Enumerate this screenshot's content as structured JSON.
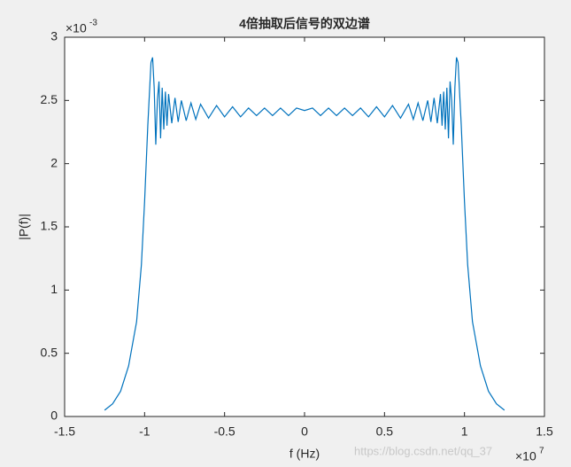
{
  "chart_data": {
    "type": "line",
    "title": "4倍抽取后信号的双边谱",
    "x_label": "f (Hz)",
    "y_label": "|P(f)|",
    "x_multiplier": {
      "base": "×10",
      "exponent": "7"
    },
    "y_multiplier": {
      "base": "×10",
      "exponent": "-3"
    },
    "watermark": "https://blog.csdn.net/qq_37",
    "xlim": [
      -1.5,
      1.5
    ],
    "ylim": [
      0,
      3
    ],
    "xticks": [
      -1.5,
      -1,
      -0.5,
      0,
      0.5,
      1,
      1.5
    ],
    "yticks": [
      0,
      0.5,
      1,
      1.5,
      2,
      2.5,
      3
    ],
    "grid": false,
    "x": [
      -1.25,
      -1.2,
      -1.15,
      -1.1,
      -1.05,
      -1.02,
      -1,
      -0.98,
      -0.96,
      -0.95,
      -0.94,
      -0.93,
      -0.92,
      -0.91,
      -0.9,
      -0.89,
      -0.88,
      -0.87,
      -0.86,
      -0.85,
      -0.83,
      -0.81,
      -0.79,
      -0.77,
      -0.74,
      -0.71,
      -0.68,
      -0.65,
      -0.6,
      -0.55,
      -0.5,
      -0.45,
      -0.4,
      -0.35,
      -0.3,
      -0.25,
      -0.2,
      -0.15,
      -0.1,
      -0.05,
      0,
      0.05,
      0.1,
      0.15,
      0.2,
      0.25,
      0.3,
      0.35,
      0.4,
      0.45,
      0.5,
      0.55,
      0.6,
      0.65,
      0.68,
      0.71,
      0.74,
      0.77,
      0.79,
      0.81,
      0.83,
      0.85,
      0.86,
      0.87,
      0.88,
      0.89,
      0.9,
      0.91,
      0.92,
      0.93,
      0.94,
      0.95,
      0.96,
      0.98,
      1,
      1.02,
      1.05,
      1.1,
      1.15,
      1.2,
      1.25
    ],
    "series": [
      {
        "color": "#0072bd",
        "values": [
          0.05,
          0.1,
          0.2,
          0.4,
          0.75,
          1.2,
          1.7,
          2.3,
          2.8,
          2.84,
          2.6,
          2.15,
          2.5,
          2.65,
          2.2,
          2.6,
          2.27,
          2.57,
          2.3,
          2.55,
          2.32,
          2.52,
          2.33,
          2.5,
          2.34,
          2.48,
          2.35,
          2.47,
          2.36,
          2.46,
          2.37,
          2.45,
          2.37,
          2.44,
          2.38,
          2.44,
          2.38,
          2.44,
          2.38,
          2.44,
          2.42,
          2.44,
          2.38,
          2.44,
          2.38,
          2.44,
          2.38,
          2.44,
          2.37,
          2.45,
          2.37,
          2.46,
          2.36,
          2.47,
          2.35,
          2.48,
          2.34,
          2.5,
          2.33,
          2.52,
          2.32,
          2.55,
          2.3,
          2.57,
          2.27,
          2.6,
          2.2,
          2.65,
          2.5,
          2.15,
          2.6,
          2.84,
          2.8,
          2.3,
          1.7,
          1.2,
          0.75,
          0.4,
          0.2,
          0.1,
          0.05
        ]
      }
    ]
  }
}
